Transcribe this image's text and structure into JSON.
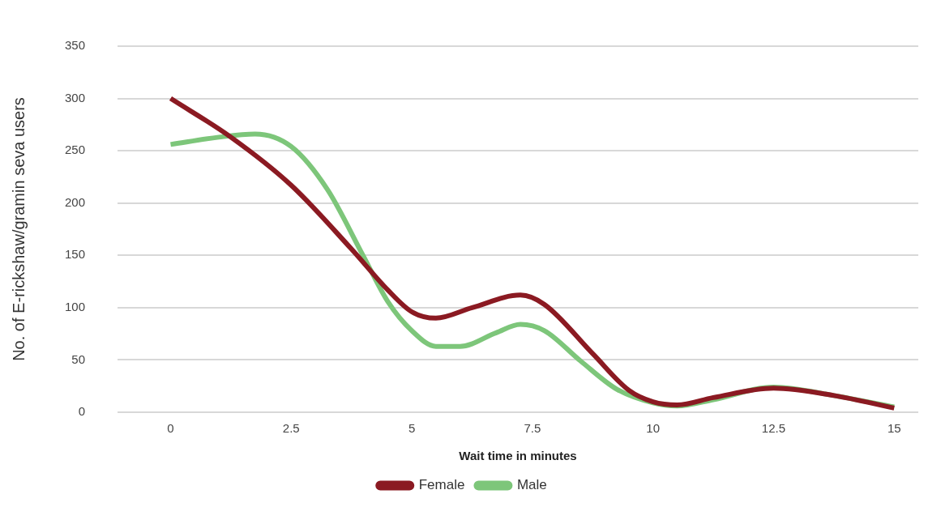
{
  "chart_data": {
    "type": "line",
    "xlabel": "Wait time in minutes",
    "ylabel": "No. of E-rickshaw/gramin seva users",
    "xlim": [
      -1.1,
      15.5
    ],
    "xticks": [
      0,
      2.5,
      5,
      7.5,
      10,
      12.5,
      15
    ],
    "ylim": [
      0,
      350
    ],
    "yticks": [
      0,
      50,
      100,
      150,
      200,
      250,
      300,
      350
    ],
    "grid": "y",
    "legend": "bottom",
    "marker": "none",
    "line_style": "solid",
    "series": [
      {
        "name": "Female",
        "color": "#8b1a22",
        "x": [
          0,
          1.25,
          2.5,
          3.75,
          4.5,
          5,
          5.5,
          6.25,
          7.25,
          7.75,
          8.75,
          9.5,
          10,
          10.5,
          11.25,
          12.5,
          13.75,
          15
        ],
        "values": [
          300,
          263,
          217,
          156,
          117,
          96,
          90,
          100,
          112,
          103,
          56,
          21,
          10,
          7,
          14,
          23,
          16,
          4
        ]
      },
      {
        "name": "Male",
        "color": "#7dc67a",
        "x": [
          0,
          1,
          1.75,
          2.5,
          3.25,
          4,
          4.5,
          5,
          5.5,
          6,
          6.75,
          7.25,
          7.75,
          8.5,
          9.25,
          10,
          10.5,
          11.25,
          12.5,
          13.75,
          15
        ],
        "values": [
          256,
          263,
          266,
          254,
          213,
          149,
          106,
          78,
          63,
          63,
          76,
          84,
          78,
          49,
          22,
          9,
          6,
          12,
          24,
          16,
          5
        ]
      }
    ]
  }
}
